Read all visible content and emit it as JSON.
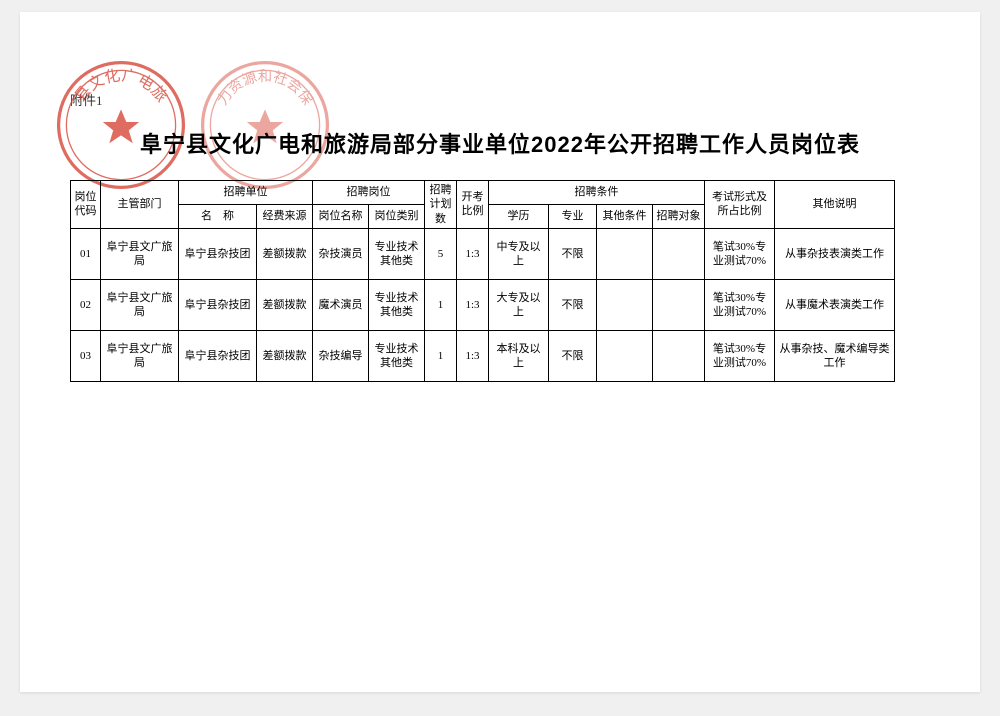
{
  "attachment_label": "附件1",
  "title": "阜宁县文化广电和旅游局部分事业单位2022年公开招聘工作人员岗位表",
  "stamp_color": "#d43b2d",
  "stamp1_text": "县文化广电旅",
  "stamp2_text": "力资源和社会保",
  "header": {
    "code": "岗位代码",
    "dept": "主管部门",
    "unit_group": "招聘单位",
    "unit_name": "名　称",
    "unit_fund": "经费来源",
    "position_group": "招聘岗位",
    "position_name": "岗位名称",
    "position_cat": "岗位类别",
    "plan": "招聘计划数",
    "ratio": "开考比例",
    "cond_group": "招聘条件",
    "cond_edu": "学历",
    "cond_major": "专业",
    "cond_other": "其他条件",
    "cond_target": "招聘对象",
    "exam": "考试形式及所占比例",
    "note": "其他说明"
  },
  "rows": [
    {
      "code": "01",
      "dept": "阜宁县文广旅局",
      "unit": "阜宁县杂技团",
      "fund": "差额拨款",
      "pname": "杂技演员",
      "pcat": "专业技术其他类",
      "plan": "5",
      "ratio": "1:3",
      "edu": "中专及以上",
      "major": "不限",
      "other": "",
      "target": "",
      "exam": "笔试30%专业测试70%",
      "note": "从事杂技表演类工作"
    },
    {
      "code": "02",
      "dept": "阜宁县文广旅局",
      "unit": "阜宁县杂技团",
      "fund": "差额拨款",
      "pname": "魔术演员",
      "pcat": "专业技术其他类",
      "plan": "1",
      "ratio": "1:3",
      "edu": "大专及以上",
      "major": "不限",
      "other": "",
      "target": "",
      "exam": "笔试30%专业测试70%",
      "note": "从事魔术表演类工作"
    },
    {
      "code": "03",
      "dept": "阜宁县文广旅局",
      "unit": "阜宁县杂技团",
      "fund": "差额拨款",
      "pname": "杂技编导",
      "pcat": "专业技术其他类",
      "plan": "1",
      "ratio": "1:3",
      "edu": "本科及以上",
      "major": "不限",
      "other": "",
      "target": "",
      "exam": "笔试30%专业测试70%",
      "note": "从事杂技、魔术编导类工作"
    }
  ]
}
